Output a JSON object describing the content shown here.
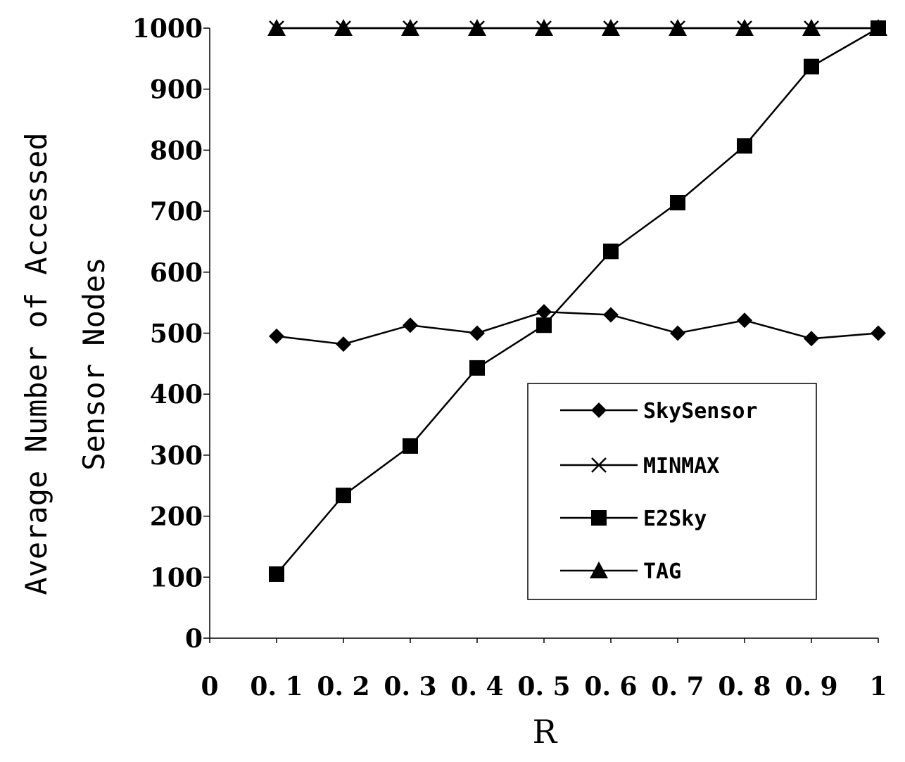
{
  "chart_data": {
    "type": "line",
    "xlabel": "R",
    "ylabel_line1": "Average  Number of Accessed",
    "ylabel_line2": "Sensor Nodes",
    "x": [
      0.1,
      0.2,
      0.3,
      0.4,
      0.5,
      0.6,
      0.7,
      0.8,
      0.9,
      1
    ],
    "xlim": [
      0,
      1
    ],
    "ylim": [
      0,
      1000
    ],
    "x_tick_labels": [
      "0",
      "0. 1",
      "0. 2",
      "0. 3",
      "0. 4",
      "0. 5",
      "0. 6",
      "0. 7",
      "0. 8",
      "0. 9",
      "1"
    ],
    "y_tick_labels": [
      "0",
      "100",
      "200",
      "300",
      "400",
      "500",
      "600",
      "700",
      "800",
      "900",
      "1000"
    ],
    "grid": false,
    "legend_position": "bottom-right",
    "series": [
      {
        "name": "SkySensor",
        "marker": "diamond",
        "values": [
          495,
          482,
          513,
          500,
          535,
          530,
          500,
          521,
          491,
          500
        ]
      },
      {
        "name": "MINMAX",
        "marker": "x",
        "values": [
          1000,
          1000,
          1000,
          1000,
          1000,
          1000,
          1000,
          1000,
          1000,
          1000
        ]
      },
      {
        "name": "E2Sky",
        "marker": "square",
        "values": [
          105,
          234,
          315,
          443,
          513,
          634,
          714,
          807,
          937,
          1000
        ]
      },
      {
        "name": "TAG",
        "marker": "triangle",
        "values": [
          1000,
          1000,
          1000,
          1000,
          1000,
          1000,
          1000,
          1000,
          1000,
          1000
        ]
      }
    ],
    "colors": {
      "line": "#000000",
      "background": "#ffffff"
    }
  }
}
